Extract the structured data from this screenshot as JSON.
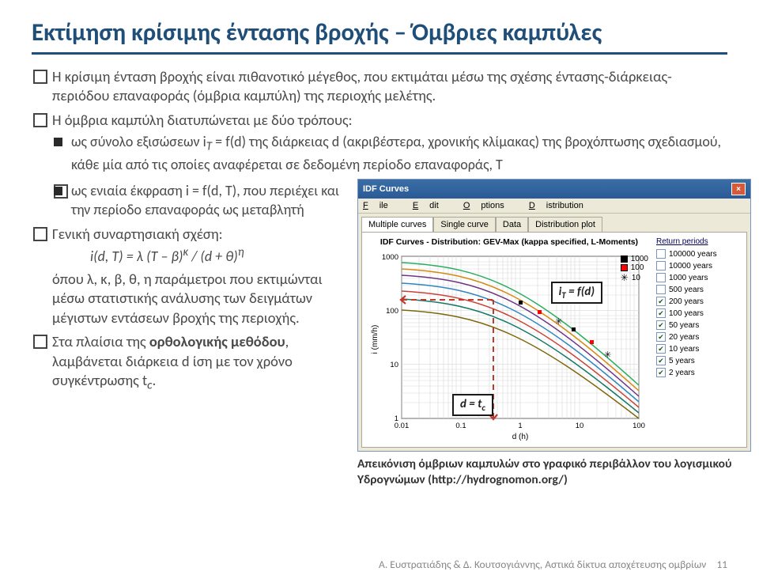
{
  "title": "Εκτίμηση κρίσιμης έντασης βροχής – Όμβριες καμπύλες",
  "p1": "Η κρίσιμη ένταση βροχής είναι πιθανοτικό μέγεθος, που εκτιμάται μέσω της σχέσης έντασης-διάρκειας-περιόδου επαναφοράς (όμβρια καμπύλη) της περιοχής μελέτης.",
  "p2": "Η όμβρια καμπύλη διατυπώνεται με δύο τρόπους:",
  "s1a": "ως σύνολο εξισώσεων i",
  "s1b": " = f(d) της διάρκειας d (ακριβέστερα, χρονικής κλίμακας) της βροχόπτωσης σχεδιασμού, κάθε μία από τις οποίες αναφέρεται σε δεδομένη περίοδο επαναφοράς, T",
  "s2": "ως ενιαία έκφραση i = f(d, T), που περιέχει και την περίοδο επαναφοράς ως μεταβλητή",
  "p3": "Γενική συναρτησιακή σχέση:",
  "formula": "i(d, T) =  λ (T – β)",
  "formula_tail": " / (d + θ)",
  "p3b": "όπου λ, κ, β, θ, η παράμετροι που εκτιμώνται μέσω στατιστικής ανάλυσης των δειγμάτων μέγιστων εντάσεων βροχής της περιοχής.",
  "p4a": "Στα πλαίσια της ",
  "p4b": "ορθολογικής μεθόδου",
  "p4c": ", λαμβάνεται διάρκεια d ίση με τον χρόνο συγκέντρωσης t",
  "window": {
    "title": "IDF Curves",
    "menu": [
      "File",
      "Edit",
      "Options",
      "Distribution"
    ],
    "tabs": [
      "Multiple curves",
      "Single curve",
      "Data",
      "Distribution plot"
    ],
    "chart_title": "IDF Curves - Distribution: GEV-Max (kappa specified, L-Moments)",
    "xlabel": "d (h)",
    "ylabel": "i (mm/h)",
    "legend_title": "Return periods",
    "legend": [
      {
        "label": "100000 years",
        "checked": false
      },
      {
        "label": "10000 years",
        "checked": false
      },
      {
        "label": "1000 years",
        "checked": false
      },
      {
        "label": "500 years",
        "checked": false
      },
      {
        "label": "200 years",
        "checked": true
      },
      {
        "label": "100 years",
        "checked": true
      },
      {
        "label": "50 years",
        "checked": true
      },
      {
        "label": "20 years",
        "checked": true
      },
      {
        "label": "10 years",
        "checked": true
      },
      {
        "label": "5 years",
        "checked": true
      },
      {
        "label": "2 years",
        "checked": true
      }
    ],
    "stats": [
      {
        "label": "1000",
        "color": "#000000"
      },
      {
        "label": "100",
        "color": "#ff0000"
      },
      {
        "label": "10",
        "color": "#0055cc"
      }
    ],
    "xticks": [
      "0.01",
      "0.1",
      "1",
      "10",
      "100"
    ],
    "yticks": [
      "1",
      "10",
      "100",
      "1000"
    ],
    "anno1": "i",
    "anno1b": " = f(d)",
    "anno2a": "d = t",
    "series_colors": [
      "#27ae60",
      "#d68910",
      "#6c3483",
      "#2e86c1",
      "#cb4335",
      "#117864",
      "#7d6608"
    ],
    "ref_color": "#c0392b",
    "grid_color": "#d7d7d7",
    "background": "#ffffff"
  },
  "caption": "Απεικόνιση όμβριων καμπυλών στο γραφικό περιβάλλον του λογισμικού Υδρογνώμων (http://hydrognomon.org/)",
  "footer": "Α. Ευστρατιάδης & Δ. Κουτσογιάννης, Αστικά δίκτυα αποχέτευσης ομβρίων",
  "page": "11"
}
